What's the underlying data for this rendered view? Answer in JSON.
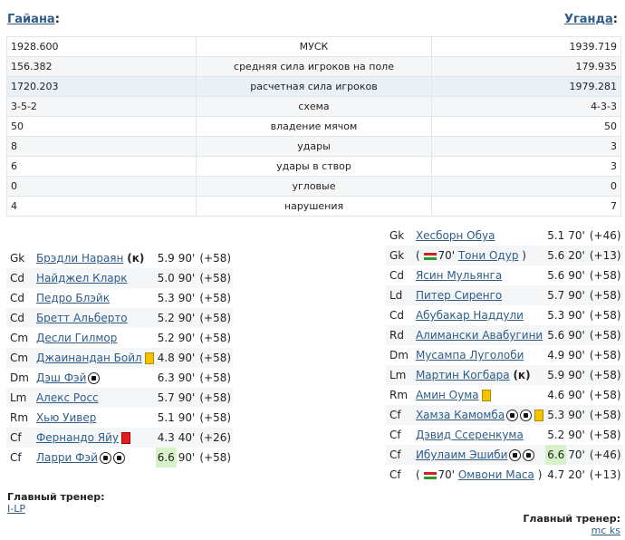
{
  "teams": {
    "home": "Гайана",
    "away": "Уганда",
    "colon": ":"
  },
  "stats": [
    {
      "home": "1928.600",
      "label": "МУСК",
      "away": "1939.719"
    },
    {
      "home": "156.382",
      "label": "средняя сила игроков на поле",
      "away": "179.935"
    },
    {
      "home": "1720.203",
      "label": "расчетная сила игроков",
      "away": "1979.281"
    },
    {
      "home": "3-5-2",
      "label": "схема",
      "away": "4-3-3"
    },
    {
      "home": "50",
      "label": "владение мячом",
      "away": "50"
    },
    {
      "home": "8",
      "label": "удары",
      "away": "3"
    },
    {
      "home": "6",
      "label": "удары в створ",
      "away": "3"
    },
    {
      "home": "0",
      "label": "угловые",
      "away": "0"
    },
    {
      "home": "4",
      "label": "нарушения",
      "away": "7"
    }
  ],
  "home_lineup": [
    {
      "pos": "Gk",
      "name": "Брэдли Нараян",
      "captain": "(к)",
      "rating": "5.9",
      "minutes": "90'",
      "plus": "(+58)"
    },
    {
      "pos": "Cd",
      "name": "Найджел Кларк",
      "rating": "5.0",
      "minutes": "90'",
      "plus": "(+58)"
    },
    {
      "pos": "Cd",
      "name": "Педро Блэйк",
      "rating": "5.3",
      "minutes": "90'",
      "plus": "(+58)"
    },
    {
      "pos": "Cd",
      "name": "Бретт Альберто",
      "rating": "5.2",
      "minutes": "90'",
      "plus": "(+58)"
    },
    {
      "pos": "Cm",
      "name": "Десли Гилмор",
      "rating": "5.2",
      "minutes": "90'",
      "plus": "(+58)"
    },
    {
      "pos": "Cm",
      "name": "Джаинандан Бойл",
      "yellow": true,
      "rating": "4.8",
      "minutes": "90'",
      "plus": "(+58)"
    },
    {
      "pos": "Dm",
      "name": "Дэш Фэй",
      "goals": 1,
      "rating": "6.3",
      "minutes": "90'",
      "plus": "(+58)"
    },
    {
      "pos": "Lm",
      "name": "Алекс Росс",
      "rating": "5.7",
      "minutes": "90'",
      "plus": "(+58)"
    },
    {
      "pos": "Rm",
      "name": "Хью Уивер",
      "rating": "5.1",
      "minutes": "90'",
      "plus": "(+58)"
    },
    {
      "pos": "Cf",
      "name": "Фернандо Яйу",
      "red": true,
      "rating": "4.3",
      "minutes": "40'",
      "plus": "(+26)"
    },
    {
      "pos": "Cf",
      "name": "Ларри Фэй",
      "goals": 2,
      "rating": "6.6",
      "best": true,
      "minutes": "90'",
      "plus": "(+58)"
    }
  ],
  "away_lineup": [
    {
      "pos": "Gk",
      "name": "Хесборн Обуа",
      "rating": "5.1",
      "minutes": "70'",
      "plus": "(+46)"
    },
    {
      "pos": "Gk",
      "name": "Тони Одур",
      "sub_in": "70'",
      "rating": "5.6",
      "minutes": "20'",
      "plus": "(+13)"
    },
    {
      "pos": "Cd",
      "name": "Ясин Мульянга",
      "rating": "5.6",
      "minutes": "90'",
      "plus": "(+58)"
    },
    {
      "pos": "Ld",
      "name": "Питер Сиренго",
      "rating": "5.7",
      "minutes": "90'",
      "plus": "(+58)"
    },
    {
      "pos": "Cd",
      "name": "Абубакар Наддули",
      "rating": "5.3",
      "minutes": "90'",
      "plus": "(+58)"
    },
    {
      "pos": "Rd",
      "name": "Алимански Авабугини",
      "rating": "5.6",
      "minutes": "90'",
      "plus": "(+58)"
    },
    {
      "pos": "Dm",
      "name": "Мусампа Луголоби",
      "rating": "4.9",
      "minutes": "90'",
      "plus": "(+58)"
    },
    {
      "pos": "Lm",
      "name": "Мартин Когбара",
      "captain": "(к)",
      "rating": "5.9",
      "minutes": "90'",
      "plus": "(+58)"
    },
    {
      "pos": "Rm",
      "name": "Амин Оума",
      "yellow": true,
      "rating": "4.6",
      "minutes": "90'",
      "plus": "(+58)"
    },
    {
      "pos": "Cf",
      "name": "Хамза Камомба",
      "goals": 2,
      "yellow": true,
      "rating": "5.3",
      "minutes": "90'",
      "plus": "(+58)"
    },
    {
      "pos": "Cf",
      "name": "Дэвид Ссеренкума",
      "rating": "5.2",
      "minutes": "90'",
      "plus": "(+58)"
    },
    {
      "pos": "Cf",
      "name": "Ибулаим Эшиби",
      "goals": 2,
      "rating": "6.6",
      "best": true,
      "minutes": "70'",
      "plus": "(+46)"
    },
    {
      "pos": "Cf",
      "name": "Омвони Маса",
      "sub_in": "70'",
      "rating": "4.7",
      "minutes": "20'",
      "plus": "(+13)"
    }
  ],
  "coaches": {
    "label": "Главный тренер:",
    "home": "I-LP",
    "away": "mc ks"
  }
}
